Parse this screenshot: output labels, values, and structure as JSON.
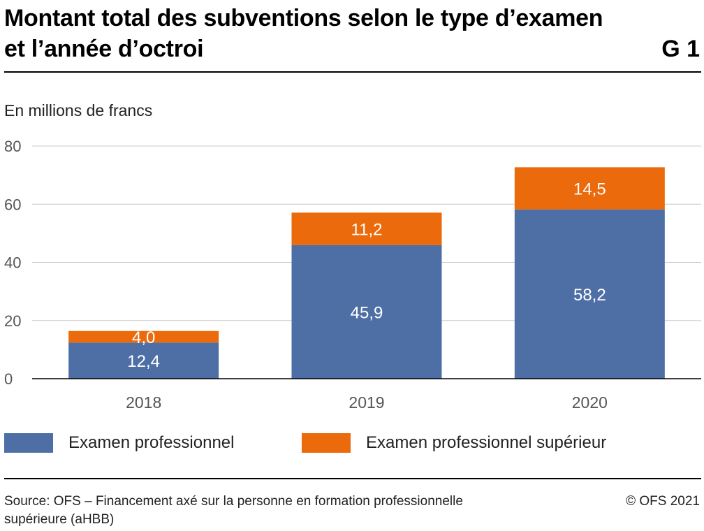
{
  "header": {
    "title": "Montant total des subventions selon le type d’examen et l’année d’octroi",
    "code": "G 1",
    "unit_label": "En millions de francs"
  },
  "footer": {
    "source": "Source: OFS – Financement axé sur la personne en formation professionnelle supérieure (aHBB)",
    "copyright": "© OFS 2021"
  },
  "chart_data": {
    "type": "bar",
    "stacked": true,
    "title": "Montant total des subventions selon le type d’examen et l’année d’octroi",
    "ylabel": "En millions de francs",
    "categories": [
      "2018",
      "2019",
      "2020"
    ],
    "ylim": [
      0,
      80
    ],
    "yticks": [
      0,
      20,
      40,
      60,
      80
    ],
    "grid": true,
    "legend_position": "bottom",
    "series": [
      {
        "name": "Examen professionnel",
        "values": [
          12.4,
          45.9,
          58.2
        ],
        "labels": [
          "12,4",
          "45,9",
          "58,2"
        ],
        "color": "#4e6fa6"
      },
      {
        "name": "Examen professionnel supérieur",
        "values": [
          4.0,
          11.2,
          14.5
        ],
        "labels": [
          "4,0",
          "11,2",
          "14,5"
        ],
        "color": "#ea6a0c"
      }
    ]
  }
}
